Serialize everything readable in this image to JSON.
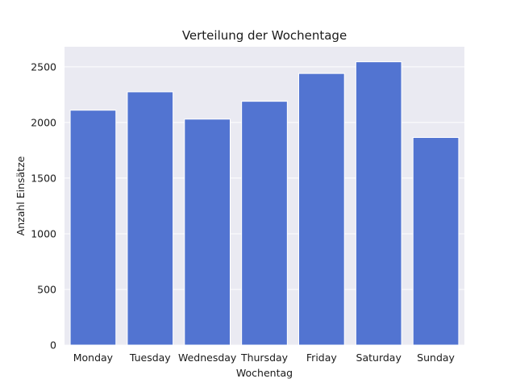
{
  "chart_data": {
    "type": "bar",
    "title": "Verteilung der Wochentage",
    "xlabel": "Wochentag",
    "ylabel": "Anzahl Einsätze",
    "categories": [
      "Monday",
      "Tuesday",
      "Wednesday",
      "Thursday",
      "Friday",
      "Saturday",
      "Sunday"
    ],
    "values": [
      2110,
      2275,
      2030,
      2190,
      2440,
      2545,
      1865
    ],
    "ylim": [
      0,
      2680
    ],
    "yticks": [
      0,
      500,
      1000,
      1500,
      2000,
      2500
    ],
    "grid": true,
    "colors": {
      "bar": "#5274d1",
      "plot_background": "#eaeaf2",
      "grid": "#ffffff"
    }
  }
}
